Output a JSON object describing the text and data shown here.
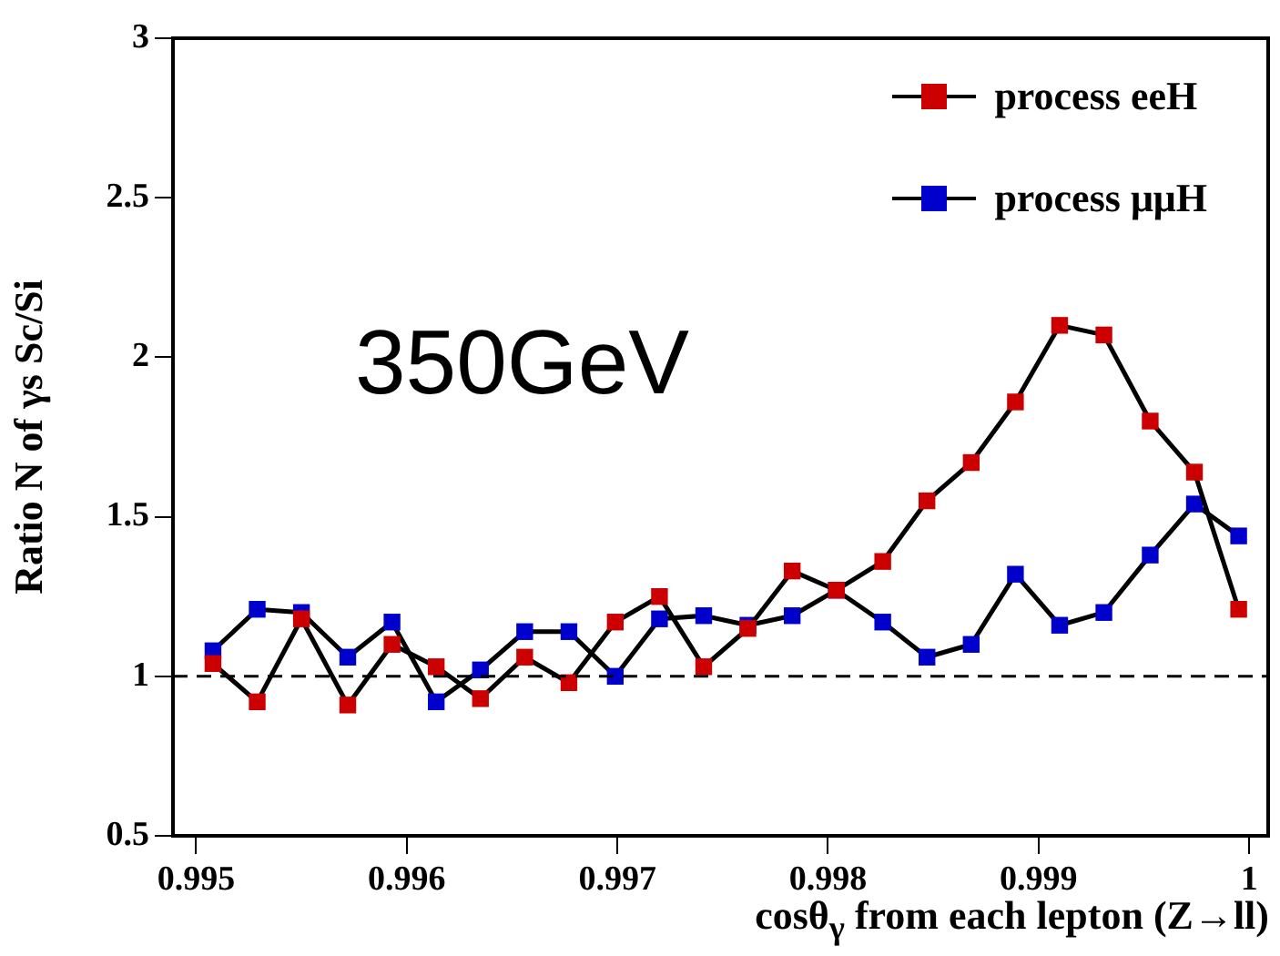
{
  "chart_data": {
    "type": "line",
    "xlabel": "cosθ$_{γ}$ from each lepton (Z→ll)",
    "ylabel": "Ratio N of γs Sc/Si",
    "x": [
      0.99508,
      0.99529,
      0.9955,
      0.99572,
      0.99593,
      0.99614,
      0.99635,
      0.99656,
      0.99677,
      0.99699,
      0.9972,
      0.99741,
      0.99762,
      0.99783,
      0.99804,
      0.99826,
      0.99847,
      0.99868,
      0.99889,
      0.9991,
      0.99931,
      0.99953,
      0.99974,
      0.99995
    ],
    "series": [
      {
        "name": "process eeH",
        "color": "#cc0000",
        "values": [
          1.04,
          0.92,
          1.18,
          0.91,
          1.1,
          1.03,
          0.93,
          1.06,
          0.98,
          1.17,
          1.25,
          1.03,
          1.15,
          1.33,
          1.27,
          1.36,
          1.55,
          1.67,
          1.86,
          2.1,
          2.07,
          1.8,
          1.64,
          1.21
        ]
      },
      {
        "name": "process μμH",
        "color": "#0000cc",
        "values": [
          1.08,
          1.21,
          1.2,
          1.06,
          1.17,
          0.92,
          1.02,
          1.14,
          1.14,
          1.0,
          1.18,
          1.19,
          1.16,
          1.19,
          1.27,
          1.17,
          1.06,
          1.1,
          1.32,
          1.16,
          1.2,
          1.38,
          1.54,
          1.44
        ]
      }
    ],
    "xlim": [
      0.99489,
      1.00009
    ],
    "xticks": [
      0.995,
      0.996,
      0.997,
      0.998,
      0.999,
      1
    ],
    "ylim": [
      0.5,
      3
    ],
    "yticks": [
      0.5,
      1,
      1.5,
      2,
      2.5,
      3
    ],
    "ref_lines": [
      {
        "axis": "y",
        "value": 1,
        "line_style": "dashed"
      }
    ],
    "annotations": [
      "350GeV"
    ],
    "legend": "top right",
    "marker": "square",
    "line_style": "solid",
    "grid": false
  }
}
